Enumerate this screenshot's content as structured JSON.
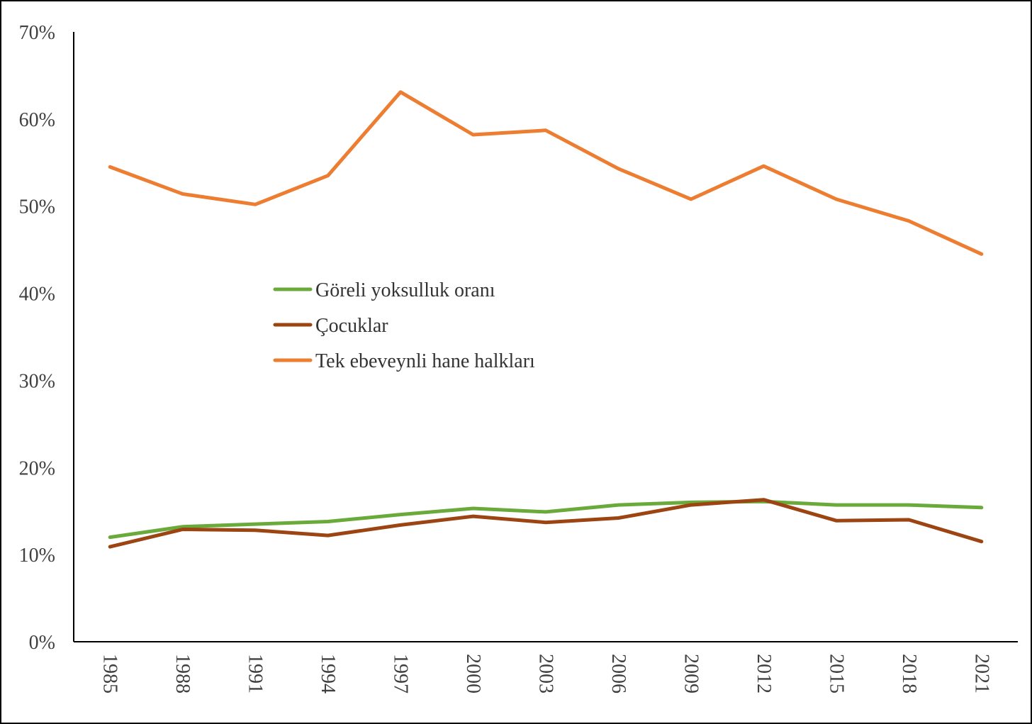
{
  "chart_data": {
    "type": "line",
    "x": [
      "1985",
      "1988",
      "1991",
      "1994",
      "1997",
      "2000",
      "2003",
      "2006",
      "2009",
      "2012",
      "2015",
      "2018",
      "2021"
    ],
    "ylim": [
      0,
      70
    ],
    "y_ticks": [
      0,
      10,
      20,
      30,
      40,
      50,
      60,
      70
    ],
    "y_tick_format": "%",
    "grid": false,
    "legend_position": "center",
    "series": [
      {
        "name": "Göreli yoksulluk oranı",
        "color": "#6aaa3a",
        "values": [
          12.0,
          13.2,
          13.5,
          13.8,
          14.6,
          15.3,
          14.9,
          15.7,
          16.0,
          16.1,
          15.7,
          15.7,
          15.4
        ]
      },
      {
        "name": "Çocuklar",
        "color": "#9c4412",
        "values": [
          10.9,
          12.9,
          12.8,
          12.2,
          13.4,
          14.4,
          13.7,
          14.2,
          15.7,
          16.3,
          13.9,
          14.0,
          11.5
        ]
      },
      {
        "name": "Tek ebeveynli hane halkları",
        "color": "#ed7d31",
        "values": [
          54.5,
          51.4,
          50.2,
          53.5,
          63.1,
          58.2,
          58.7,
          54.3,
          50.8,
          54.6,
          50.8,
          48.3,
          44.5
        ]
      }
    ]
  }
}
